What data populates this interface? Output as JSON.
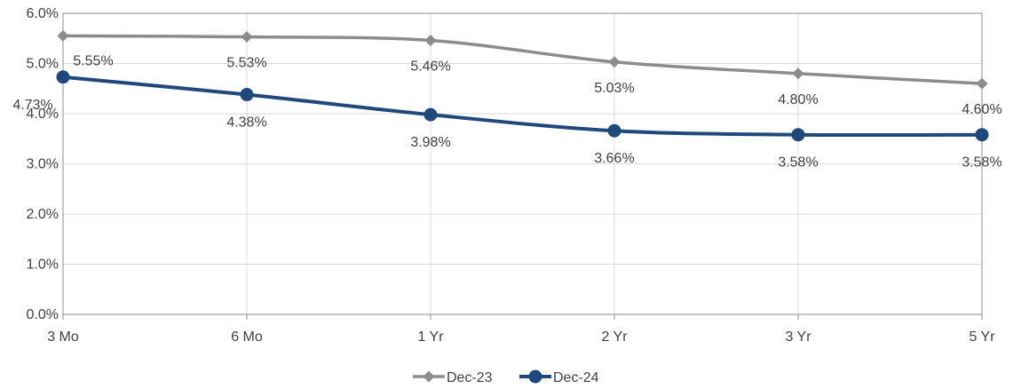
{
  "chart_data": {
    "type": "line",
    "title": "",
    "xlabel": "",
    "ylabel": "",
    "categories": [
      "3 Mo",
      "6 Mo",
      "1 Yr",
      "2 Yr",
      "3 Yr",
      "5 Yr"
    ],
    "ylim": [
      0,
      6
    ],
    "y_ticks": [
      "0.0%",
      "1.0%",
      "2.0%",
      "3.0%",
      "4.0%",
      "5.0%",
      "6.0%"
    ],
    "grid": true,
    "legend_position": "bottom",
    "series": [
      {
        "name": "Dec-23",
        "values": [
          5.55,
          5.53,
          5.46,
          5.03,
          4.8,
          4.6
        ],
        "labels": [
          "5.55%",
          "5.53%",
          "5.46%",
          "5.03%",
          "4.80%",
          "4.60%"
        ],
        "color": "#8c8c8c",
        "marker": "diamond"
      },
      {
        "name": "Dec-24",
        "values": [
          4.73,
          4.38,
          3.98,
          3.66,
          3.58,
          3.58
        ],
        "labels": [
          "4.73%",
          "4.38%",
          "3.98%",
          "3.66%",
          "3.58%",
          "3.58%"
        ],
        "color": "#1f497d",
        "marker": "circle"
      }
    ]
  }
}
